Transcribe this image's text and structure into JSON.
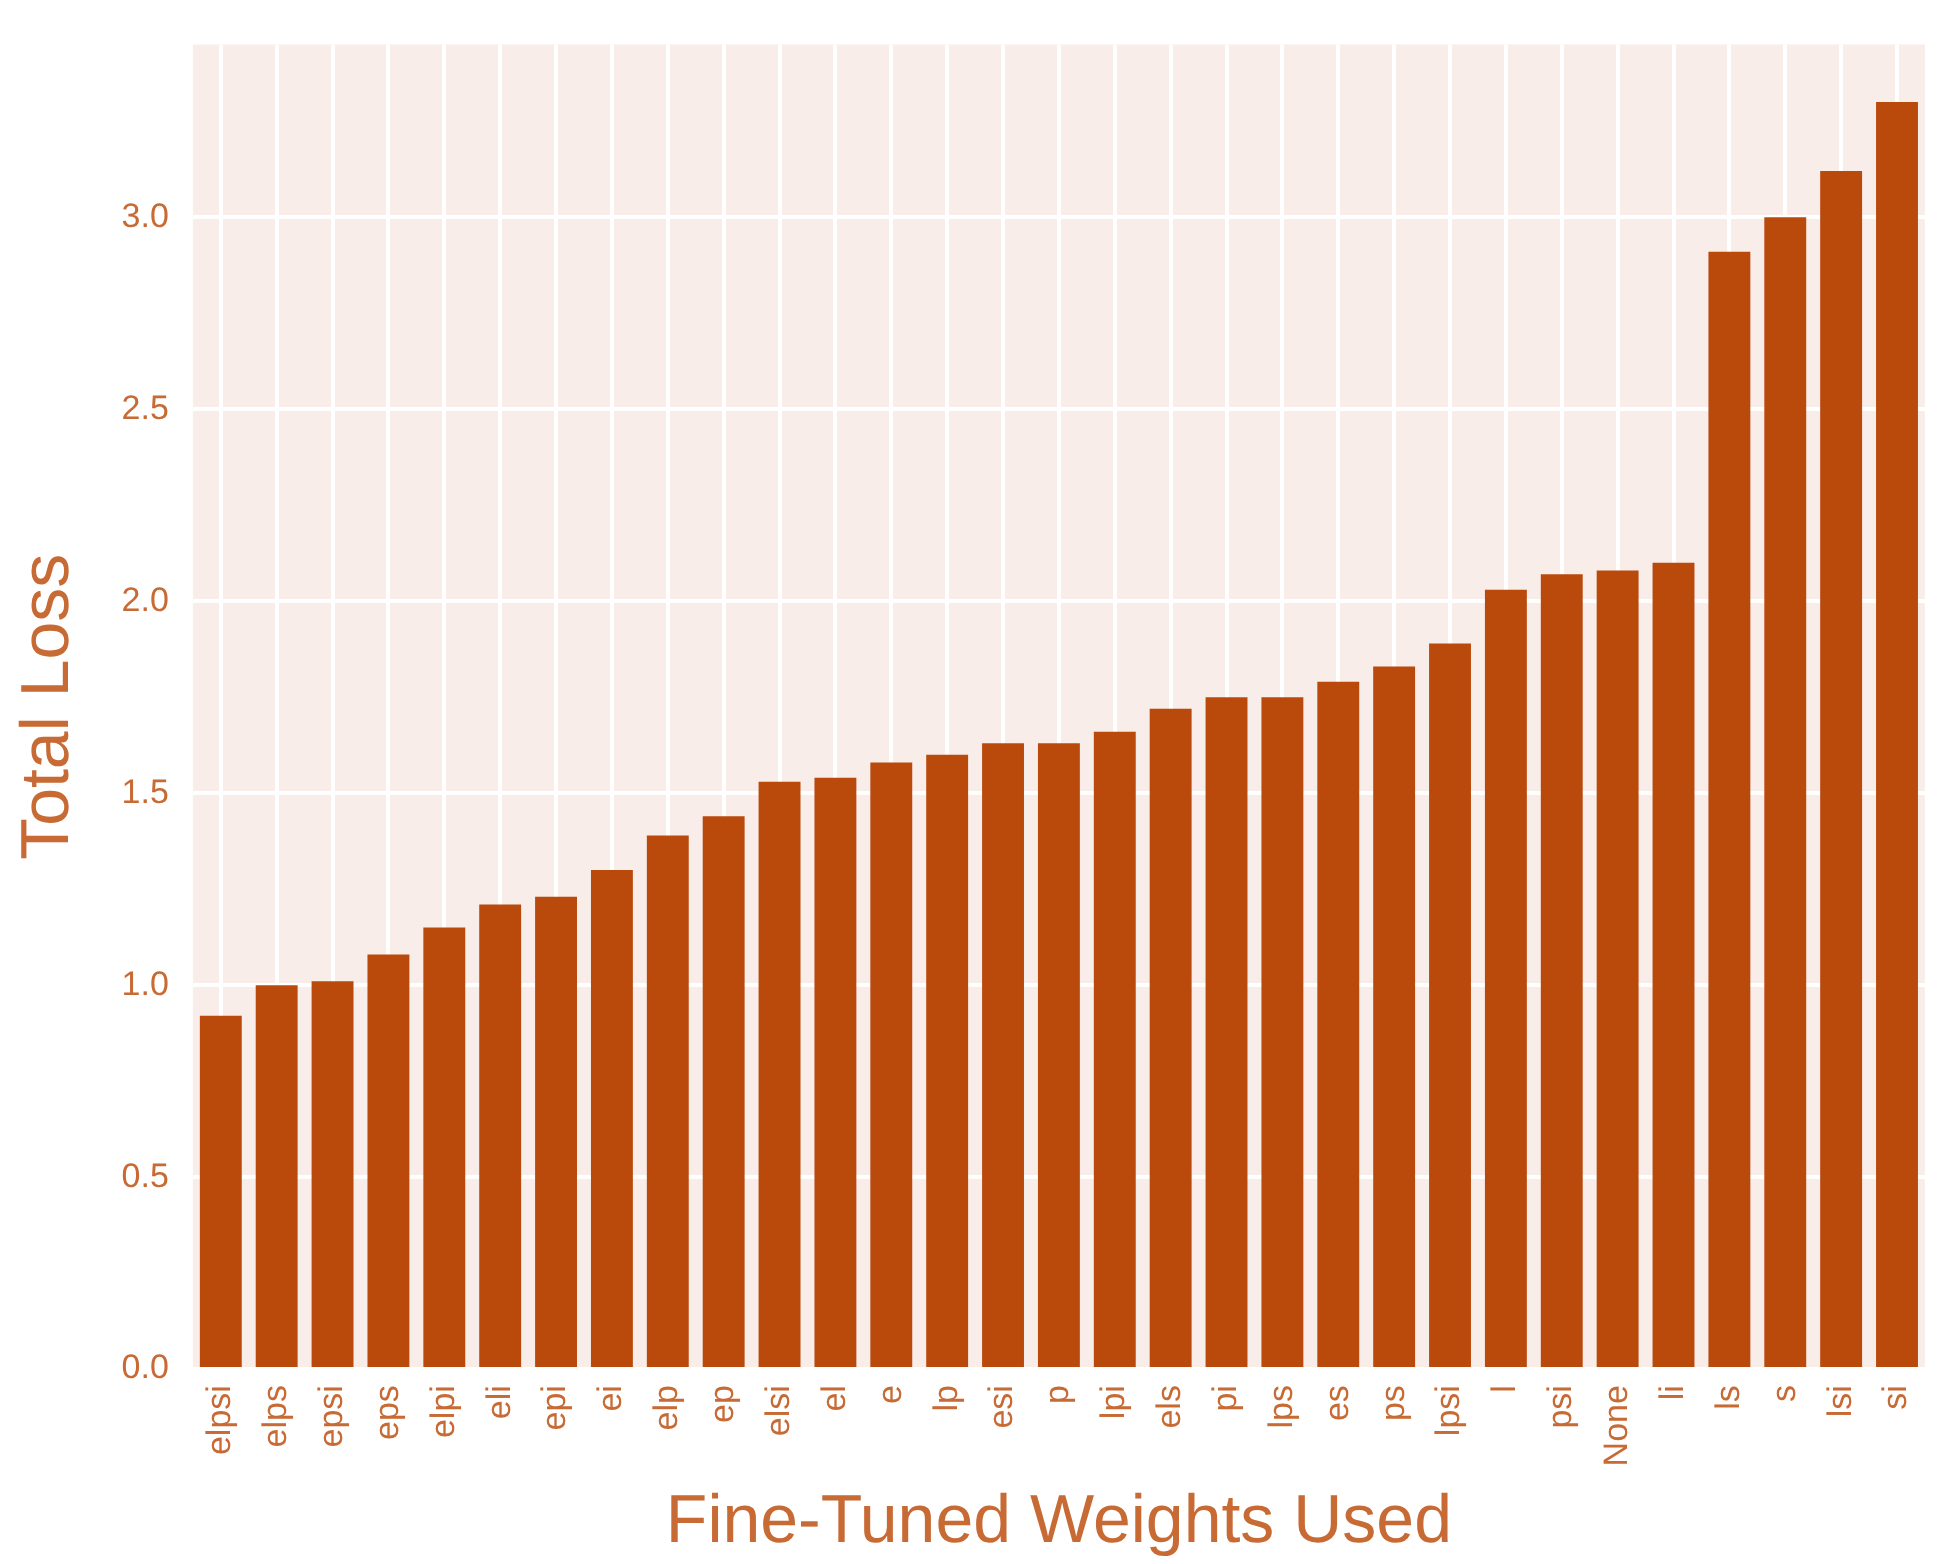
{
  "chart_data": {
    "type": "bar",
    "xlabel": "Fine-Tuned Weights Used",
    "ylabel": "Total Loss",
    "categories": [
      "elpsi",
      "elps",
      "epsi",
      "eps",
      "elpi",
      "eli",
      "epi",
      "ei",
      "elp",
      "ep",
      "elsi",
      "el",
      "e",
      "lp",
      "esi",
      "p",
      "lpi",
      "els",
      "pi",
      "lps",
      "es",
      "ps",
      "lpsi",
      "l",
      "psi",
      "None",
      "li",
      "ls",
      "s",
      "lsi",
      "si"
    ],
    "values": [
      0.92,
      1.0,
      1.01,
      1.08,
      1.15,
      1.21,
      1.23,
      1.3,
      1.39,
      1.44,
      1.53,
      1.54,
      1.58,
      1.6,
      1.63,
      1.63,
      1.66,
      1.72,
      1.75,
      1.75,
      1.79,
      1.83,
      1.89,
      2.03,
      2.07,
      2.08,
      2.1,
      2.91,
      3.0,
      3.12,
      3.3
    ],
    "color": "#b94a0c",
    "ylim": [
      0,
      3.45
    ],
    "yticks": [
      {
        "value": 0,
        "label": "0.0"
      },
      {
        "value": 0.5,
        "label": "0.5"
      },
      {
        "value": 1,
        "label": "1.0"
      },
      {
        "value": 1.5,
        "label": "1.5"
      },
      {
        "value": 2,
        "label": "2.0"
      },
      {
        "value": 2.5,
        "label": "2.5"
      },
      {
        "value": 3,
        "label": "3.0"
      }
    ],
    "grid": true
  }
}
